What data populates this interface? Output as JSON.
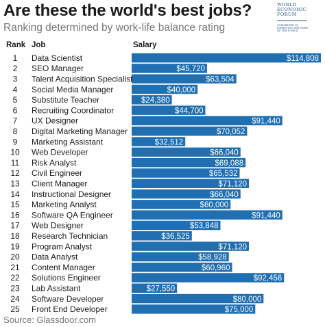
{
  "header": {
    "title": "Are these the world's best jobs?",
    "subtitle": "Ranking determined by work-life balance rating"
  },
  "logo": {
    "lines": [
      "WORLD",
      "ECONOMIC",
      "FORUM"
    ],
    "tagline": [
      "COMMITTED TO",
      "IMPROVING THE STATE",
      "OF THE WORLD"
    ]
  },
  "columns": {
    "rank": "Rank",
    "job": "Job",
    "salary": "Salary"
  },
  "source": "Source: Glassdoor.com",
  "colors": {
    "bar": "#1f6fb2",
    "label": "#ffffff"
  },
  "chart_data": {
    "type": "bar",
    "orientation": "horizontal",
    "title": "Are these the world's best jobs?",
    "subtitle": "Ranking determined by work-life balance rating",
    "xlabel": "Salary",
    "ylabel": "Job",
    "xlim": [
      0,
      114808
    ],
    "grid": false,
    "legend": "none",
    "ranks": [
      1,
      2,
      3,
      4,
      5,
      6,
      7,
      8,
      9,
      10,
      11,
      12,
      13,
      14,
      15,
      16,
      17,
      18,
      19,
      20,
      21,
      22,
      23,
      24,
      25
    ],
    "categories": [
      "Data Scientist",
      "SEO Manager",
      "Talent Acquisition Specialist",
      "Social Media Manager",
      "Substitute Teacher",
      "Recruiting Coordinator",
      "UX Designer",
      "Digital Marketing Manager",
      "Marketing Assistant",
      "Web Developer",
      "Risk Analyst",
      "Civil Engineer",
      "Client Manager",
      "Instructional Designer",
      "Marketing Analyst",
      "Software QA Engineer",
      "Web Designer",
      "Research Technician",
      "Program Analyst",
      "Data Analyst",
      "Content Manager",
      "Solutions Engineer",
      "Lab Assistant",
      "Software Developer",
      "Front End Developer"
    ],
    "values": [
      114808,
      45720,
      63504,
      40000,
      24380,
      44700,
      91440,
      70052,
      32512,
      66040,
      69088,
      65532,
      71120,
      66040,
      60000,
      91440,
      53848,
      36525,
      71120,
      58928,
      60960,
      92456,
      27550,
      80000,
      75000
    ],
    "value_labels": [
      "$114,808",
      "$45,720",
      "$63,504",
      "$40,000",
      "$24,380",
      "$44,700",
      "$91,440",
      "$70,052",
      "$32,512",
      "$66,040",
      "$69,088",
      "$65,532",
      "$71,120",
      "$66,040",
      "$60,000",
      "$91,440",
      "$53,848",
      "$36,525",
      "$71,120",
      "$58,928",
      "$60,960",
      "$92,456",
      "$27,550",
      "$80,000",
      "$75,000"
    ]
  }
}
